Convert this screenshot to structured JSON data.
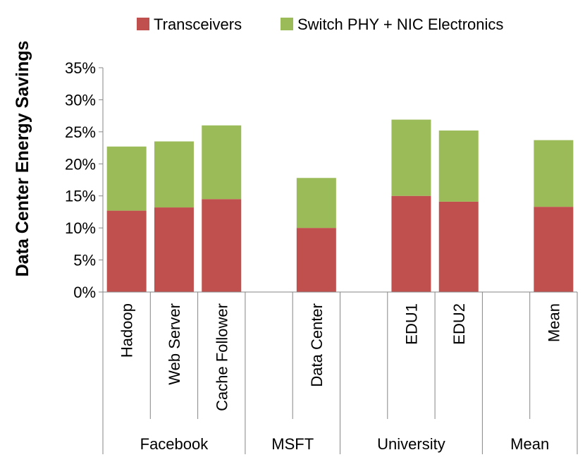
{
  "chart_data": {
    "type": "bar",
    "stacked": true,
    "title": "",
    "xlabel": "",
    "ylabel": "Data Center Energy Savings",
    "ylim": [
      0,
      35
    ],
    "yticks": [
      0,
      5,
      10,
      15,
      20,
      25,
      30,
      35
    ],
    "ytick_labels": [
      "0%",
      "5%",
      "10%",
      "15%",
      "20%",
      "25%",
      "30%",
      "35%"
    ],
    "grid": false,
    "legend_position": "top",
    "slots": [
      "Hadoop",
      "Web Server",
      "Cache Follower",
      "",
      "Data Center",
      "",
      "EDU1",
      "EDU2",
      "",
      "Mean"
    ],
    "categories": [
      "Hadoop",
      "Web Server",
      "Cache Follower",
      "Data Center",
      "EDU1",
      "EDU2",
      "Mean"
    ],
    "groups": [
      {
        "name": "Facebook",
        "span": 3
      },
      {
        "name": "MSFT",
        "span": 2
      },
      {
        "name": "University",
        "span": 3
      },
      {
        "name": "Mean",
        "span": 2
      }
    ],
    "series": [
      {
        "name": "Transceivers",
        "color": "#c0504d",
        "values": [
          12.7,
          13.2,
          14.5,
          10.0,
          15.0,
          14.1,
          13.3
        ]
      },
      {
        "name": "Switch PHY + NIC Electronics",
        "color": "#9bbb59",
        "values": [
          10.0,
          10.3,
          11.5,
          7.8,
          11.9,
          11.1,
          10.4
        ]
      }
    ]
  }
}
